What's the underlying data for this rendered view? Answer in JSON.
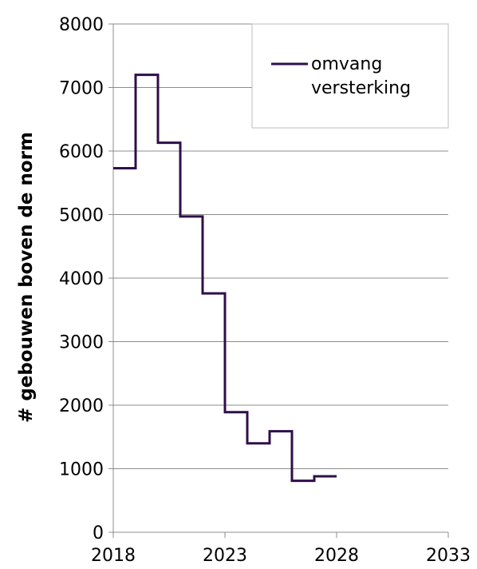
{
  "chart_data": {
    "type": "line",
    "step": true,
    "ylabel": "# gebouwen boven de norm",
    "xlabel": "",
    "xlim": [
      2018,
      2033
    ],
    "ylim": [
      0,
      8000
    ],
    "x_ticks": [
      2018,
      2023,
      2028,
      2033
    ],
    "x_tick_labels": [
      "2018",
      "2023",
      "2028",
      "2033"
    ],
    "y_ticks": [
      0,
      1000,
      2000,
      3000,
      4000,
      5000,
      6000,
      7000,
      8000
    ],
    "y_tick_labels": [
      "0",
      "1000",
      "2000",
      "3000",
      "4000",
      "5000",
      "6000",
      "7000",
      "8000"
    ],
    "grid": "horizontal",
    "legend": {
      "placement": "top-right",
      "entries": [
        "omvang versterking"
      ]
    },
    "series": [
      {
        "name": "omvang versterking",
        "color": "#2e0f4a",
        "points": [
          {
            "x": 2018,
            "y": 5730
          },
          {
            "x": 2019,
            "y": 7200
          },
          {
            "x": 2020,
            "y": 6130
          },
          {
            "x": 2021,
            "y": 4970
          },
          {
            "x": 2022,
            "y": 3760
          },
          {
            "x": 2023,
            "y": 1890
          },
          {
            "x": 2024,
            "y": 1400
          },
          {
            "x": 2025,
            "y": 1590
          },
          {
            "x": 2026,
            "y": 810
          },
          {
            "x": 2027,
            "y": 880
          },
          {
            "x": 2028,
            "y": 880
          }
        ]
      }
    ]
  }
}
